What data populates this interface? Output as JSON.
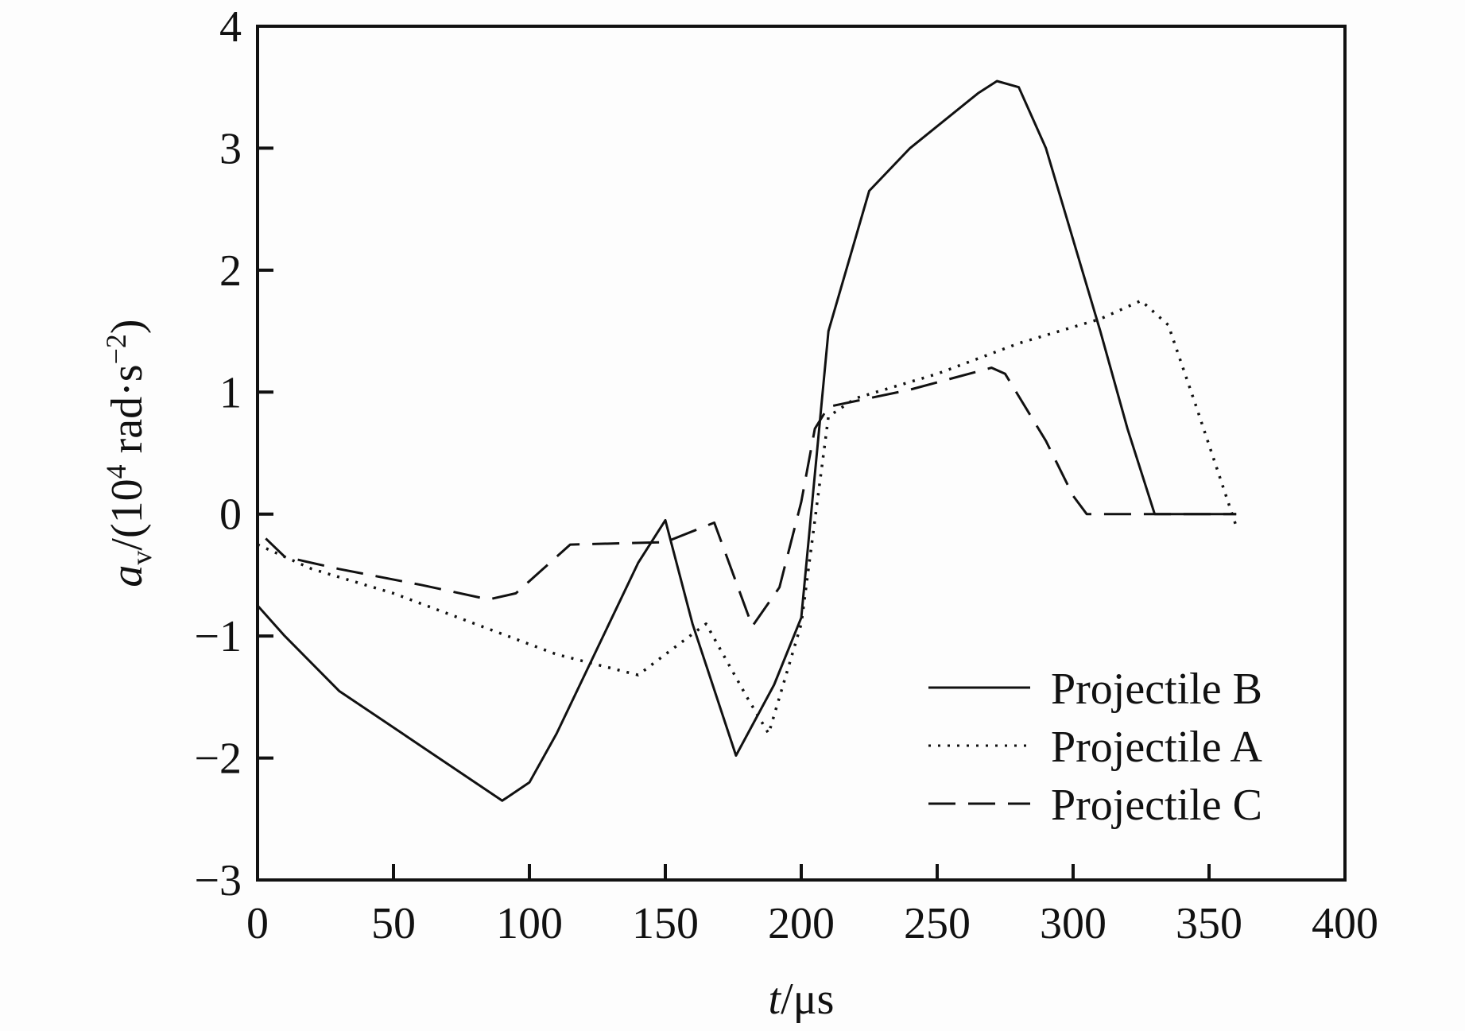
{
  "chart_data": {
    "type": "line",
    "title": "",
    "xlabel": "t/μs",
    "xlabel_parts": {
      "var": "t",
      "unit": "/μs"
    },
    "ylabel": "a_v/(10^4 rad·s^-2)",
    "ylabel_parts": {
      "var": "a",
      "sub": "v",
      "pre": "/(10",
      "sup1": "4",
      "mid": " rad·s",
      "sup2": "−2",
      "post": ")"
    },
    "xlim": [
      0,
      400
    ],
    "ylim": [
      -3,
      4
    ],
    "xticks": [
      0,
      50,
      100,
      150,
      200,
      250,
      300,
      350,
      400
    ],
    "yticks": [
      -3,
      -2,
      -1,
      0,
      1,
      2,
      3,
      4
    ],
    "ytick_labels": [
      "−3",
      "−2",
      "−1",
      "0",
      "1",
      "2",
      "3",
      "4"
    ],
    "grid": false,
    "legend_position": "bottom-right",
    "series": [
      {
        "name": "Projectile B",
        "style": "solid",
        "color": "#111111",
        "x": [
          0,
          10,
          30,
          60,
          80,
          90,
          100,
          110,
          125,
          140,
          150,
          160,
          176,
          190,
          200,
          210,
          225,
          240,
          265,
          272,
          280,
          290,
          310,
          320,
          330,
          360
        ],
        "y": [
          -0.75,
          -1.0,
          -1.45,
          -1.9,
          -2.2,
          -2.35,
          -2.2,
          -1.8,
          -1.1,
          -0.4,
          -0.05,
          -0.9,
          -1.98,
          -1.4,
          -0.85,
          1.5,
          2.65,
          3.0,
          3.45,
          3.55,
          3.5,
          3.0,
          1.5,
          0.7,
          0,
          0
        ]
      },
      {
        "name": "Projectile A",
        "style": "dotted",
        "color": "#111111",
        "x": [
          0,
          20,
          50,
          80,
          110,
          140,
          150,
          165,
          180,
          188,
          200,
          210,
          220,
          250,
          280,
          310,
          325,
          335,
          345,
          360
        ],
        "y": [
          -0.25,
          -0.45,
          -0.65,
          -0.9,
          -1.15,
          -1.32,
          -1.15,
          -0.9,
          -1.5,
          -1.8,
          -0.9,
          0.8,
          0.95,
          1.15,
          1.4,
          1.6,
          1.75,
          1.55,
          0.9,
          -0.1
        ]
      },
      {
        "name": "Projectile C",
        "style": "dashed",
        "color": "#111111",
        "x": [
          3,
          10,
          30,
          60,
          85,
          95,
          105,
          115,
          150,
          168,
          182,
          192,
          200,
          205,
          210,
          240,
          270,
          275,
          290,
          300,
          305,
          360
        ],
        "y": [
          -0.2,
          -0.35,
          -0.45,
          -0.58,
          -0.7,
          -0.65,
          -0.45,
          -0.25,
          -0.23,
          -0.07,
          -0.92,
          -0.6,
          0.1,
          0.7,
          0.88,
          1.02,
          1.2,
          1.15,
          0.6,
          0.15,
          0,
          0
        ]
      }
    ]
  }
}
